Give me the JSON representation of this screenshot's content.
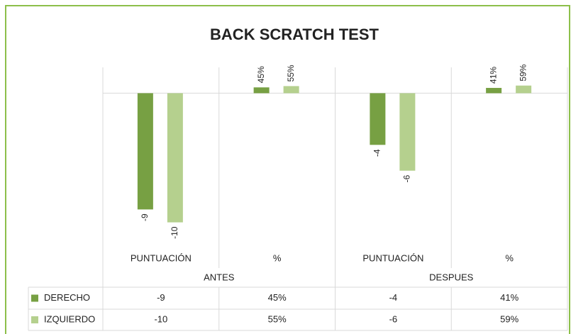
{
  "chart_data": {
    "type": "bar",
    "title": "BACK SCRATCH TEST",
    "categories": [
      "PUNTUACIÓN",
      "%",
      "PUNTUACIÓN",
      "%"
    ],
    "groups": [
      "ANTES",
      "DESPUES"
    ],
    "series": [
      {
        "name": "DERECHO",
        "color": "#77a043",
        "values": [
          -9,
          0.45,
          -4,
          0.41
        ],
        "value_labels": [
          "-9",
          "45%",
          "-4",
          "41%"
        ]
      },
      {
        "name": "IZQUIERDO",
        "color": "#b5d08e",
        "values": [
          -10,
          0.55,
          -6,
          0.59
        ],
        "value_labels": [
          "-10",
          "55%",
          "-6",
          "59%"
        ]
      }
    ],
    "ylim": [
      -12,
      2
    ]
  }
}
